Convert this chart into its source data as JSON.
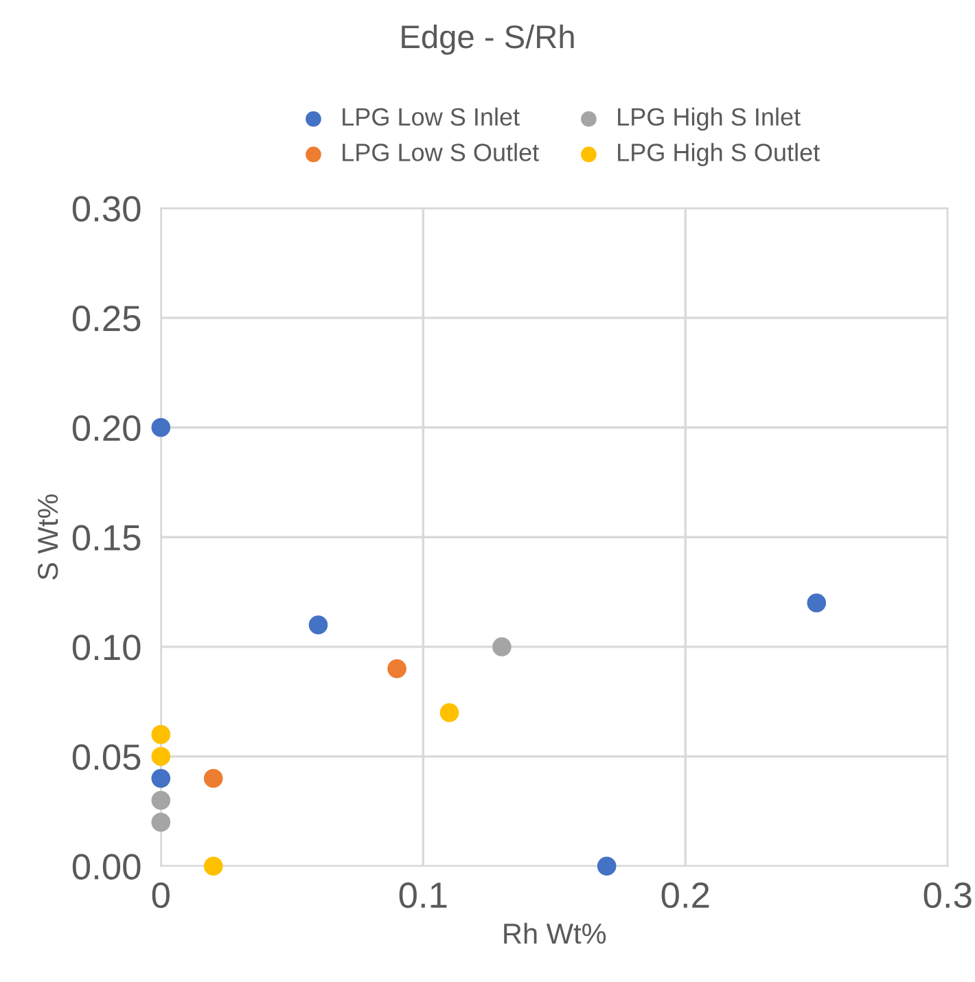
{
  "chart_data": {
    "type": "scatter",
    "title": "Edge - S/Rh",
    "xlabel": "Rh Wt%",
    "ylabel": "S Wt%",
    "series": [
      {
        "name": "LPG Low S Inlet",
        "color": "#4472c4",
        "x": [
          0,
          0.06,
          0.25,
          0.17,
          0
        ],
        "values": [
          0.2,
          0.11,
          0.12,
          0.0,
          0.04
        ]
      },
      {
        "name": "LPG Low S Outlet",
        "color": "#ed7d31",
        "x": [
          0.09,
          0.02
        ],
        "values": [
          0.09,
          0.04
        ]
      },
      {
        "name": "LPG High S Inlet",
        "color": "#a5a5a5",
        "x": [
          0.13,
          0,
          0
        ],
        "values": [
          0.1,
          0.03,
          0.02
        ]
      },
      {
        "name": "LPG High S Outlet",
        "color": "#ffc000",
        "x": [
          0,
          0,
          0.11,
          0.02
        ],
        "values": [
          0.06,
          0.05,
          0.07,
          0.0
        ]
      }
    ],
    "xlim": [
      0,
      0.3
    ],
    "xticks": [
      0,
      0.1,
      0.2,
      0.3
    ],
    "ylim": [
      0,
      0.3
    ],
    "yticks": [
      {
        "value": 0,
        "label": "0.00"
      },
      {
        "value": 0.05,
        "label": "0.05"
      },
      {
        "value": 0.1,
        "label": "0.10"
      },
      {
        "value": 0.15,
        "label": "0.15"
      },
      {
        "value": 0.2,
        "label": "0.20"
      },
      {
        "value": 0.25,
        "label": "0.25"
      },
      {
        "value": 0.3,
        "label": "0.30"
      }
    ],
    "grid": true,
    "legend": "top",
    "marker": "circle"
  }
}
